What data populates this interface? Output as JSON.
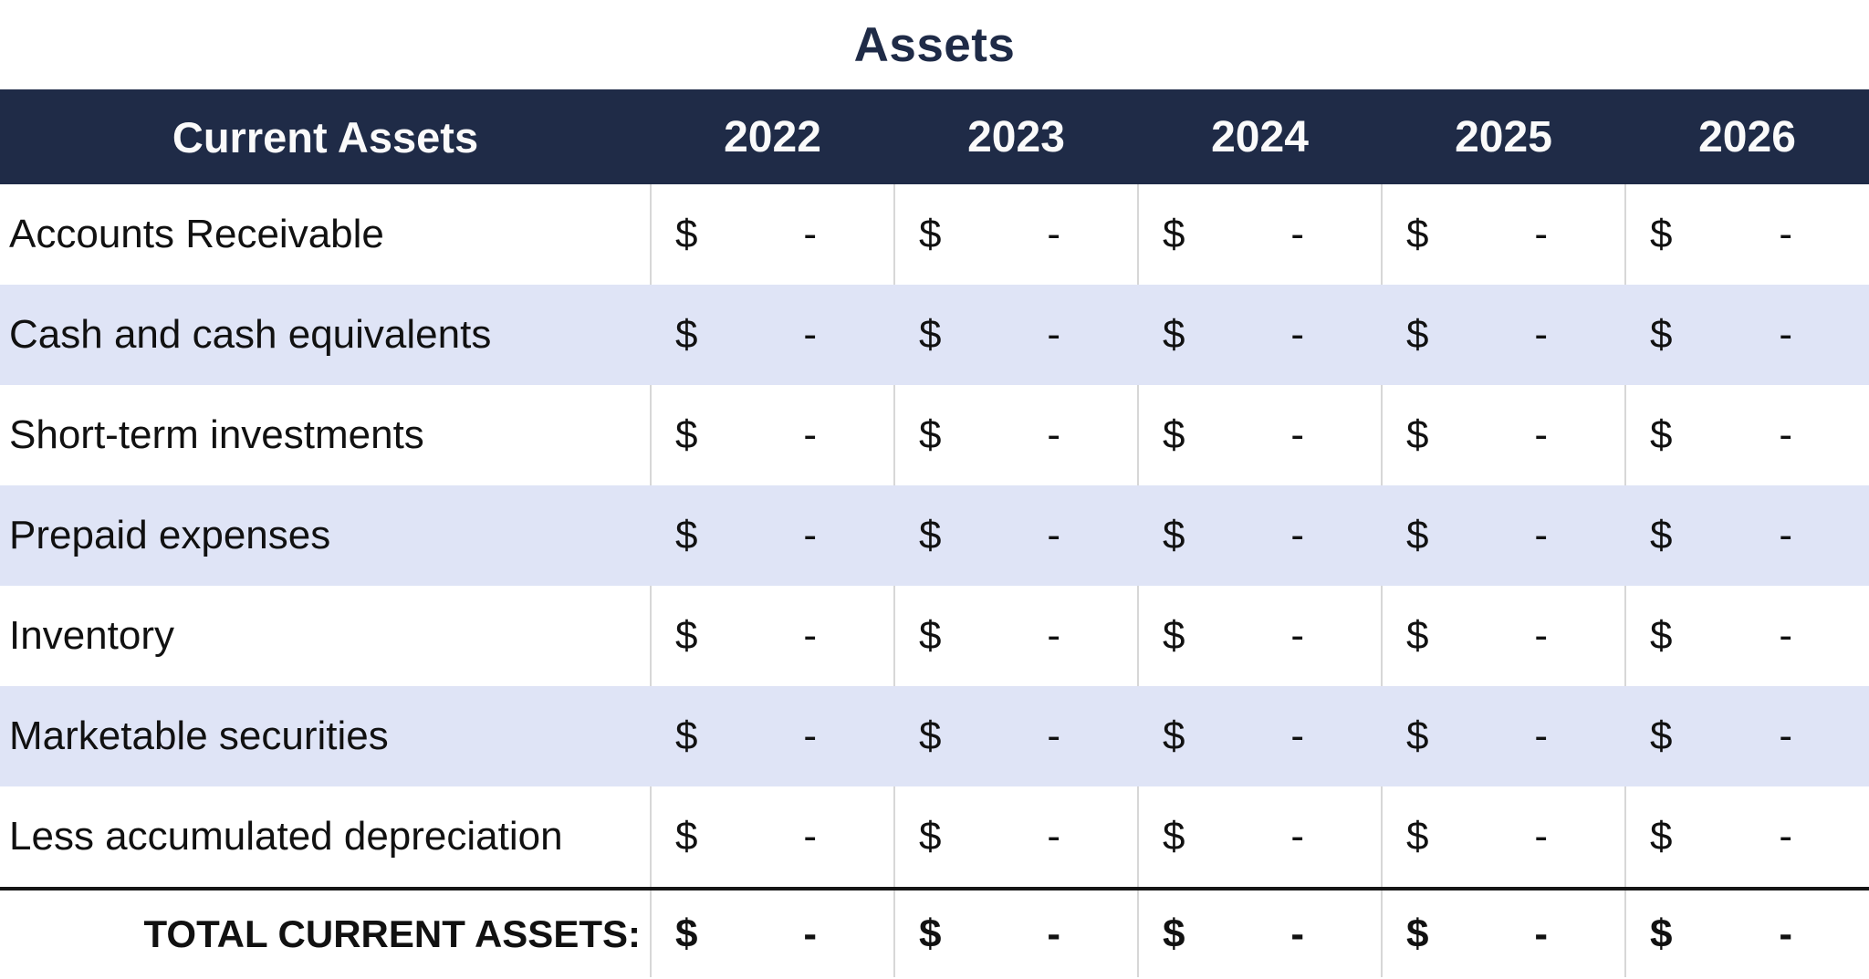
{
  "page": {
    "title": "Assets"
  },
  "colors": {
    "header_bg": "#1f2b47",
    "header_text": "#fafafa",
    "stripe_bg": "#dfe4f6",
    "column_border": "#d7d7d7",
    "total_rule": "#151515",
    "title_text": "#1f2b47"
  },
  "table": {
    "currency_symbol": "$",
    "header": {
      "label": "Current Assets",
      "years": [
        "2022",
        "2023",
        "2024",
        "2025",
        "2026"
      ]
    },
    "rows": [
      {
        "label": "Accounts Receivable",
        "values": [
          "-",
          "-",
          "-",
          "-",
          "-"
        ]
      },
      {
        "label": "Cash and cash equivalents",
        "values": [
          "-",
          "-",
          "-",
          "-",
          "-"
        ]
      },
      {
        "label": "Short-term investments",
        "values": [
          "-",
          "-",
          "-",
          "-",
          "-"
        ]
      },
      {
        "label": "Prepaid expenses",
        "values": [
          "-",
          "-",
          "-",
          "-",
          "-"
        ]
      },
      {
        "label": "Inventory",
        "values": [
          "-",
          "-",
          "-",
          "-",
          "-"
        ]
      },
      {
        "label": "Marketable securities",
        "values": [
          "-",
          "-",
          "-",
          "-",
          "-"
        ]
      },
      {
        "label": "Less accumulated depreciation",
        "values": [
          "-",
          "-",
          "-",
          "-",
          "-"
        ]
      }
    ],
    "total_row": {
      "label": "TOTAL CURRENT ASSETS:",
      "values": [
        "-",
        "-",
        "-",
        "-",
        "-"
      ]
    }
  }
}
